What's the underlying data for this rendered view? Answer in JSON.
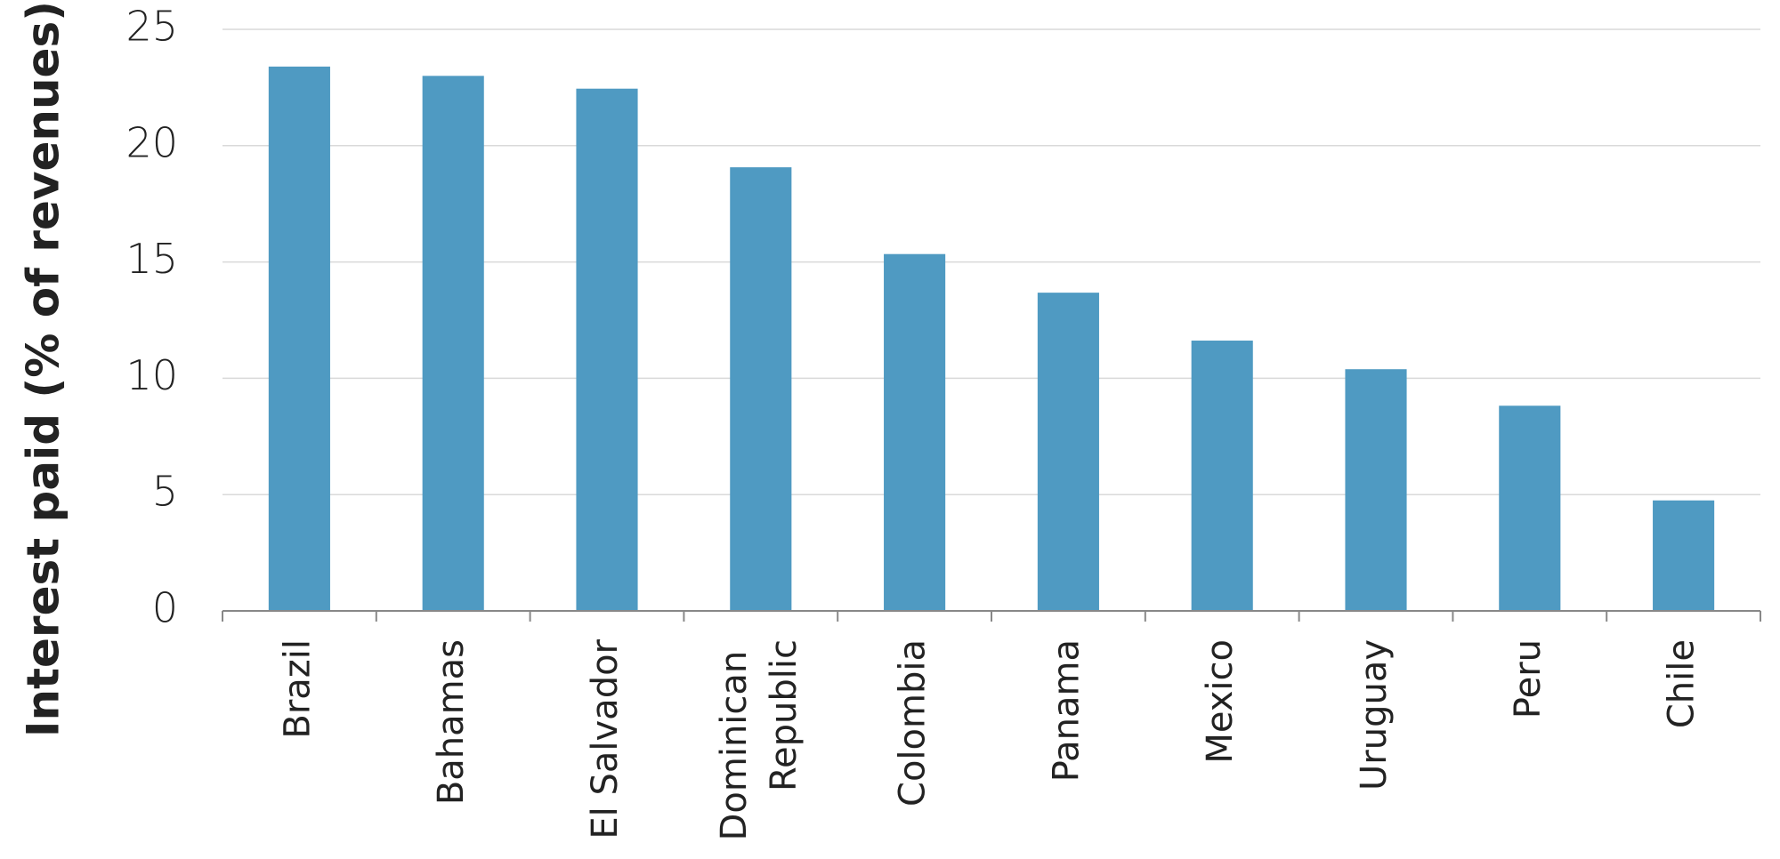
{
  "chart_data": {
    "type": "bar",
    "y_label": "Interest paid (% of revenues)",
    "categories": [
      "Brazil",
      "Bahamas",
      "El Salvador",
      "Dominican Republic",
      "Colombia",
      "Panama",
      "Mexico",
      "Uruguay",
      "Peru",
      "Chile"
    ],
    "values": [
      23.4,
      23.0,
      22.45,
      19.07,
      15.34,
      13.68,
      11.62,
      10.39,
      8.82,
      4.75
    ],
    "color": "#4f9ac2",
    "ylim": [
      0,
      25
    ],
    "yticks": [
      0,
      5,
      10,
      15,
      20,
      25
    ],
    "grid": true
  }
}
